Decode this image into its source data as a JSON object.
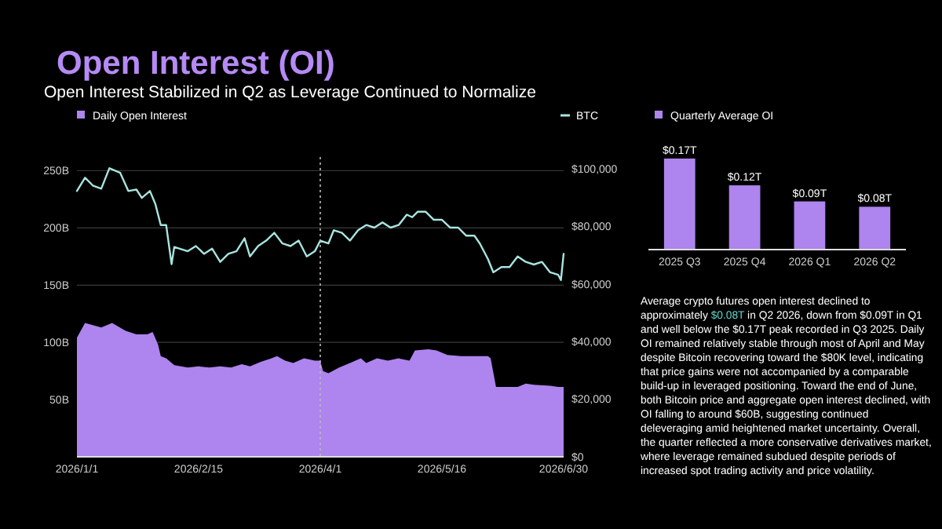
{
  "chart_data": [
    {
      "type": "area",
      "title": "Open Interest (OI)",
      "subtitle": "Open Interest Stabilized in Q2 as Leverage Continued to Normalize",
      "legend": "top",
      "grid": "y",
      "xlim": [
        "2026-01-01",
        "2026-06-30"
      ],
      "xticks": [
        {
          "value": "2026-01-01",
          "label": "2026/1/1"
        },
        {
          "value": "2026-02-15",
          "label": "2026/2/15"
        },
        {
          "value": "2026-04-01",
          "label": "2026/4/1"
        },
        {
          "value": "2026-05-16",
          "label": "2026/5/16"
        },
        {
          "value": "2026-06-30",
          "label": "2026/6/30"
        }
      ],
      "ylim": [
        0,
        262
      ],
      "yticks": [
        {
          "value": 50,
          "label": "50B"
        },
        {
          "value": 100,
          "label": "100B"
        },
        {
          "value": 150,
          "label": "150B"
        },
        {
          "value": 200,
          "label": "200B"
        },
        {
          "value": 250,
          "label": "250B"
        }
      ],
      "y2lim": [
        0,
        104000
      ],
      "y2ticks": [
        {
          "value": 0,
          "label": "$0"
        },
        {
          "value": 20000,
          "label": "$20,000"
        },
        {
          "value": 40000,
          "label": "$40,000"
        },
        {
          "value": 60000,
          "label": "$60,000"
        },
        {
          "value": 80000,
          "label": "$80,000"
        },
        {
          "value": 100000,
          "label": "$100,000"
        }
      ],
      "ref_lines": [
        {
          "axis": "x",
          "value": "2026-04-01",
          "color": "#bbbbbb",
          "line_style": "dotted"
        }
      ],
      "series": [
        {
          "name": "Daily Open Interest",
          "type": "area",
          "color": "#ae84ee",
          "x": [
            "2026-01-01",
            "2026-01-04",
            "2026-01-10",
            "2026-01-14",
            "2026-01-19",
            "2026-01-23",
            "2026-01-27",
            "2026-01-29",
            "2026-01-31",
            "2026-02-01",
            "2026-02-03",
            "2026-02-06",
            "2026-02-11",
            "2026-02-15",
            "2026-02-19",
            "2026-02-23",
            "2026-02-27",
            "2026-03-03",
            "2026-03-06",
            "2026-03-10",
            "2026-03-14",
            "2026-03-16",
            "2026-03-19",
            "2026-03-22",
            "2026-03-26",
            "2026-03-30",
            "2026-04-01",
            "2026-04-02",
            "2026-04-04",
            "2026-04-08",
            "2026-04-12",
            "2026-04-16",
            "2026-04-18",
            "2026-04-22",
            "2026-04-26",
            "2026-04-30",
            "2026-05-04",
            "2026-05-06",
            "2026-05-11",
            "2026-05-14",
            "2026-05-18",
            "2026-05-23",
            "2026-05-27",
            "2026-06-02",
            "2026-06-03",
            "2026-06-05",
            "2026-06-09",
            "2026-06-13",
            "2026-06-16",
            "2026-06-19",
            "2026-06-25",
            "2026-06-28",
            "2026-06-30"
          ],
          "values": [
            104,
            117,
            113,
            117,
            110,
            107,
            107,
            109,
            98,
            88,
            86,
            80,
            78,
            79,
            78,
            79,
            78,
            81,
            79,
            83,
            86,
            88,
            84,
            82,
            86,
            84,
            84,
            75,
            73,
            78,
            82,
            86,
            82,
            86,
            84,
            86,
            84,
            93,
            94,
            93,
            89,
            88,
            88,
            88,
            86,
            61,
            61,
            61,
            64,
            63,
            62,
            61,
            61
          ]
        },
        {
          "name": "BTC",
          "type": "line",
          "axis": "y2",
          "color": "#a8e4e0",
          "x": [
            "2026-01-01",
            "2026-01-04",
            "2026-01-07",
            "2026-01-10",
            "2026-01-13",
            "2026-01-17",
            "2026-01-20",
            "2026-01-23",
            "2026-01-25",
            "2026-01-28",
            "2026-01-30",
            "2026-02-01",
            "2026-02-03",
            "2026-02-05",
            "2026-02-06",
            "2026-02-08",
            "2026-02-11",
            "2026-02-14",
            "2026-02-17",
            "2026-02-20",
            "2026-02-23",
            "2026-02-26",
            "2026-03-01",
            "2026-03-04",
            "2026-03-06",
            "2026-03-09",
            "2026-03-12",
            "2026-03-15",
            "2026-03-18",
            "2026-03-21",
            "2026-03-24",
            "2026-03-27",
            "2026-03-30",
            "2026-04-01",
            "2026-04-04",
            "2026-04-06",
            "2026-04-09",
            "2026-04-12",
            "2026-04-15",
            "2026-04-18",
            "2026-04-21",
            "2026-04-24",
            "2026-04-27",
            "2026-04-30",
            "2026-05-03",
            "2026-05-05",
            "2026-05-07",
            "2026-05-10",
            "2026-05-13",
            "2026-05-16",
            "2026-05-19",
            "2026-05-22",
            "2026-05-25",
            "2026-05-28",
            "2026-05-30",
            "2026-06-02",
            "2026-06-04",
            "2026-06-07",
            "2026-06-10",
            "2026-06-13",
            "2026-06-16",
            "2026-06-19",
            "2026-06-22",
            "2026-06-25",
            "2026-06-28",
            "2026-06-29",
            "2026-06-30"
          ],
          "values": [
            92200,
            96800,
            94000,
            93000,
            100100,
            98500,
            92200,
            92700,
            89800,
            92200,
            87700,
            80400,
            80400,
            66800,
            72800,
            72200,
            71300,
            73100,
            70400,
            72200,
            67600,
            70400,
            71300,
            75800,
            69500,
            73100,
            75000,
            77700,
            74000,
            73100,
            75000,
            69500,
            71300,
            75000,
            74000,
            78600,
            77700,
            75000,
            78600,
            80400,
            79500,
            81300,
            79500,
            80400,
            84000,
            83100,
            85000,
            85000,
            82200,
            82200,
            79500,
            79500,
            76700,
            76700,
            74000,
            68600,
            64000,
            65800,
            65800,
            69500,
            67600,
            66700,
            67600,
            64000,
            63100,
            61300,
            70400
          ]
        }
      ]
    },
    {
      "type": "bar",
      "legend": "top left",
      "categories": [
        "2025 Q3",
        "2025 Q4",
        "2026 Q1",
        "2026 Q2"
      ],
      "series": [
        {
          "name": "Quarterly Average OI",
          "color": "#ae84ee",
          "values": [
            0.17,
            0.12,
            0.09,
            0.08
          ],
          "value_labels": [
            "$0.17T",
            "$0.12T",
            "$0.09T",
            "$0.08T"
          ]
        }
      ]
    },
    {
      "type": "other",
      "annotations": [
        "Average crypto futures open interest declined to approximately ",
        "$0.08T",
        " in Q2 2026, down from $0.09T in Q1 and well below the $0.17T peak recorded in Q3 2025. Daily OI remained relatively stable through most of April and May despite Bitcoin recovering toward the $80K level, indicating that price gains were not accompanied by a comparable build-up in leveraged positioning. Toward the end of June, both Bitcoin price and aggregate open interest declined, with OI falling to around $60B, suggesting continued deleveraging amid heightened market uncertainty. Overall, the quarter reflected a more conservative derivatives market, where leverage remained subdued despite periods of increased spot trading activity and price volatility."
      ],
      "colors": [
        "#ffffff",
        "#5fd6cc",
        "#ffffff"
      ]
    }
  ]
}
